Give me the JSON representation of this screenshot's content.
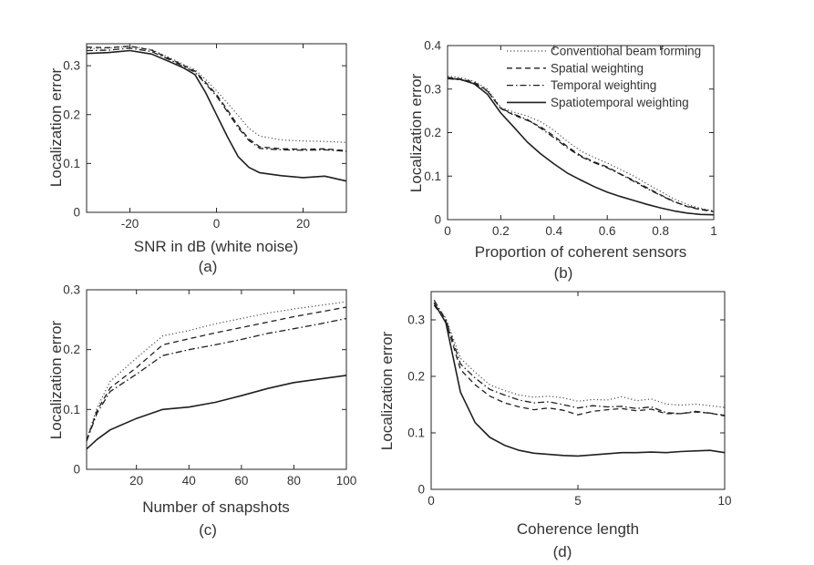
{
  "figure": {
    "background": "#ffffff",
    "text_color": "#333333",
    "spine_color": "#262626",
    "line_color": "#1f1f1f",
    "dotted_line_color": "#4a4a4a"
  },
  "legend": {
    "location": "inside-top of subplot (b)",
    "entries": [
      "Conventional beam forming",
      "Spatial weighting",
      "Temporal weighting",
      "Spatiotemporal weighting"
    ]
  },
  "chart_data": [
    {
      "id": "a",
      "type": "line",
      "caption": "(a)",
      "xlabel": "SNR in dB (white noise)",
      "ylabel": "Localization error",
      "xlim": [
        -30,
        30
      ],
      "ylim": [
        0,
        0.345
      ],
      "xticks": [
        -20,
        0,
        20
      ],
      "yticks": [
        0,
        0.1,
        0.2,
        0.3
      ],
      "grid": false,
      "legend": false,
      "x": [
        -30,
        -25,
        -20,
        -15,
        -10,
        -7.5,
        -5,
        -2.5,
        0,
        2.5,
        5,
        7.5,
        10,
        15,
        20,
        25,
        30
      ],
      "series": [
        {
          "name": "Conventional beam forming",
          "line_style": "dotted",
          "values": [
            0.335,
            0.336,
            0.34,
            0.333,
            0.313,
            0.302,
            0.292,
            0.272,
            0.249,
            0.224,
            0.198,
            0.172,
            0.156,
            0.148,
            0.146,
            0.145,
            0.143
          ]
        },
        {
          "name": "Spatial weighting",
          "line_style": "dashed",
          "values": [
            0.338,
            0.337,
            0.34,
            0.332,
            0.311,
            0.3,
            0.289,
            0.266,
            0.241,
            0.21,
            0.177,
            0.15,
            0.134,
            0.13,
            0.129,
            0.13,
            0.126
          ]
        },
        {
          "name": "Temporal weighting",
          "line_style": "dashdot",
          "values": [
            0.331,
            0.332,
            0.336,
            0.329,
            0.309,
            0.298,
            0.287,
            0.263,
            0.238,
            0.206,
            0.173,
            0.147,
            0.131,
            0.128,
            0.127,
            0.128,
            0.125
          ]
        },
        {
          "name": "Spatiotemporal weighting",
          "line_style": "solid",
          "values": [
            0.325,
            0.327,
            0.331,
            0.324,
            0.305,
            0.295,
            0.282,
            0.245,
            0.2,
            0.155,
            0.114,
            0.092,
            0.081,
            0.075,
            0.071,
            0.074,
            0.064
          ]
        }
      ]
    },
    {
      "id": "b",
      "type": "line",
      "caption": "(b)",
      "xlabel": "Proportion of coherent sensors",
      "ylabel": "Localization error",
      "xlim": [
        0,
        1
      ],
      "ylim": [
        0,
        0.4
      ],
      "xticks": [
        0,
        0.2,
        0.4,
        0.6,
        0.8,
        1
      ],
      "yticks": [
        0,
        0.1,
        0.2,
        0.3,
        0.4
      ],
      "grid": false,
      "legend": true,
      "x": [
        0,
        0.05,
        0.1,
        0.15,
        0.2,
        0.25,
        0.3,
        0.35,
        0.4,
        0.45,
        0.5,
        0.55,
        0.6,
        0.65,
        0.7,
        0.75,
        0.8,
        0.85,
        0.9,
        0.95,
        1
      ],
      "series": [
        {
          "name": "Conventional beam forming",
          "line_style": "dotted",
          "values": [
            0.33,
            0.326,
            0.318,
            0.3,
            0.258,
            0.247,
            0.238,
            0.225,
            0.205,
            0.18,
            0.158,
            0.143,
            0.13,
            0.115,
            0.1,
            0.082,
            0.065,
            0.048,
            0.035,
            0.026,
            0.02
          ]
        },
        {
          "name": "Spatial weighting",
          "line_style": "dashed",
          "values": [
            0.327,
            0.323,
            0.316,
            0.296,
            0.255,
            0.24,
            0.228,
            0.213,
            0.192,
            0.168,
            0.147,
            0.133,
            0.121,
            0.105,
            0.09,
            0.073,
            0.057,
            0.042,
            0.03,
            0.023,
            0.018
          ]
        },
        {
          "name": "Temporal weighting",
          "line_style": "dashdot",
          "values": [
            0.324,
            0.321,
            0.314,
            0.295,
            0.256,
            0.242,
            0.23,
            0.21,
            0.188,
            0.165,
            0.145,
            0.131,
            0.119,
            0.104,
            0.088,
            0.071,
            0.056,
            0.041,
            0.031,
            0.024,
            0.019
          ]
        },
        {
          "name": "Spatiotemporal weighting",
          "line_style": "solid",
          "values": [
            0.325,
            0.322,
            0.312,
            0.288,
            0.245,
            0.212,
            0.178,
            0.151,
            0.128,
            0.107,
            0.091,
            0.076,
            0.063,
            0.053,
            0.044,
            0.035,
            0.027,
            0.02,
            0.015,
            0.012,
            0.011
          ]
        }
      ]
    },
    {
      "id": "c",
      "type": "line",
      "caption": "(c)",
      "xlabel": "Number of snapshots",
      "ylabel": "Localization error",
      "xlim": [
        1,
        100
      ],
      "ylim": [
        0,
        0.3
      ],
      "xticks": [
        20,
        40,
        60,
        80,
        100
      ],
      "yticks": [
        0,
        0.1,
        0.2,
        0.3
      ],
      "grid": false,
      "legend": false,
      "x": [
        1,
        5,
        10,
        20,
        30,
        40,
        50,
        60,
        70,
        80,
        90,
        100
      ],
      "series": [
        {
          "name": "Conventional beam forming",
          "line_style": "dotted",
          "values": [
            0.05,
            0.103,
            0.147,
            0.186,
            0.223,
            0.232,
            0.243,
            0.252,
            0.261,
            0.268,
            0.274,
            0.28
          ]
        },
        {
          "name": "Spatial weighting",
          "line_style": "dashed",
          "values": [
            0.048,
            0.098,
            0.136,
            0.17,
            0.208,
            0.218,
            0.228,
            0.237,
            0.246,
            0.255,
            0.263,
            0.271
          ]
        },
        {
          "name": "Temporal weighting",
          "line_style": "dashdot",
          "values": [
            0.047,
            0.094,
            0.13,
            0.159,
            0.19,
            0.2,
            0.208,
            0.217,
            0.227,
            0.235,
            0.243,
            0.252
          ]
        },
        {
          "name": "Spatiotemporal weighting",
          "line_style": "solid",
          "values": [
            0.034,
            0.05,
            0.066,
            0.085,
            0.1,
            0.104,
            0.112,
            0.123,
            0.135,
            0.145,
            0.151,
            0.157
          ]
        }
      ]
    },
    {
      "id": "d",
      "type": "line",
      "caption": "(d)",
      "xlabel": "Coherence length",
      "ylabel": "Localization error",
      "xlim": [
        0,
        10
      ],
      "ylim": [
        0,
        0.35
      ],
      "xticks": [
        0,
        5,
        10
      ],
      "yticks": [
        0,
        0.1,
        0.2,
        0.3
      ],
      "grid": false,
      "legend": false,
      "x": [
        0.1,
        0.5,
        1,
        1.5,
        2,
        2.5,
        3,
        3.5,
        4,
        4.5,
        5,
        5.5,
        6,
        6.5,
        7,
        7.5,
        8,
        8.5,
        9,
        9.5,
        10
      ],
      "series": [
        {
          "name": "Conventional beam forming",
          "line_style": "dotted",
          "values": [
            0.33,
            0.303,
            0.232,
            0.207,
            0.185,
            0.175,
            0.167,
            0.163,
            0.165,
            0.162,
            0.156,
            0.159,
            0.158,
            0.164,
            0.157,
            0.16,
            0.151,
            0.149,
            0.151,
            0.148,
            0.145
          ]
        },
        {
          "name": "Spatial weighting",
          "line_style": "dashed",
          "values": [
            0.326,
            0.298,
            0.212,
            0.185,
            0.165,
            0.153,
            0.146,
            0.141,
            0.144,
            0.14,
            0.132,
            0.138,
            0.141,
            0.143,
            0.139,
            0.142,
            0.134,
            0.134,
            0.137,
            0.135,
            0.13
          ]
        },
        {
          "name": "Temporal weighting",
          "line_style": "dashdot",
          "values": [
            0.335,
            0.3,
            0.222,
            0.197,
            0.177,
            0.167,
            0.158,
            0.153,
            0.155,
            0.15,
            0.144,
            0.148,
            0.146,
            0.147,
            0.143,
            0.146,
            0.136,
            0.134,
            0.138,
            0.135,
            0.131
          ]
        },
        {
          "name": "Spatiotemporal weighting",
          "line_style": "solid",
          "values": [
            0.33,
            0.295,
            0.172,
            0.118,
            0.092,
            0.078,
            0.069,
            0.064,
            0.062,
            0.06,
            0.059,
            0.061,
            0.063,
            0.065,
            0.065,
            0.066,
            0.065,
            0.067,
            0.068,
            0.069,
            0.065
          ]
        }
      ]
    }
  ]
}
